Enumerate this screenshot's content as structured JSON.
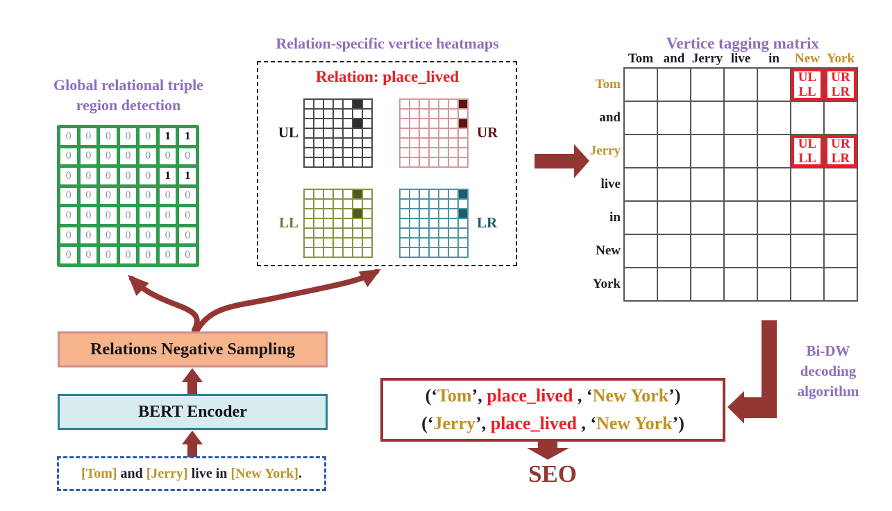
{
  "colors": {
    "purple": "#8f6fbd",
    "darkred": "#943634",
    "green": "#2f9b4e",
    "gold": "#bf9226",
    "red": "#ee1c25",
    "ink": "#1c1c2a",
    "zero": "#8d93a2",
    "gridline": "#575757",
    "bluedash": "#2b5cab",
    "bert_fill": "#d8ecf0",
    "bert_border": "#2b7f90",
    "sampling_fill": "#f6b48d",
    "sampling_border": "#cf8e8e"
  },
  "left_panel": {
    "title_lines": [
      "Global relational triple",
      "region detection"
    ],
    "matrix": [
      [
        "0",
        "0",
        "0",
        "0",
        "0",
        "1",
        "1"
      ],
      [
        "0",
        "0",
        "0",
        "0",
        "0",
        "0",
        "0"
      ],
      [
        "0",
        "0",
        "0",
        "0",
        "0",
        "1",
        "1"
      ],
      [
        "0",
        "0",
        "0",
        "0",
        "0",
        "0",
        "0"
      ],
      [
        "0",
        "0",
        "0",
        "0",
        "0",
        "0",
        "0"
      ],
      [
        "0",
        "0",
        "0",
        "0",
        "0",
        "0",
        "0"
      ],
      [
        "0",
        "0",
        "0",
        "0",
        "0",
        "0",
        "0"
      ]
    ]
  },
  "heatmaps": {
    "title": "Relation-specific vertice heatmaps",
    "relation_label": "Relation: place_lived",
    "grids": [
      {
        "label": "UL",
        "rows": 7,
        "cols": 7,
        "marked": [
          [
            0,
            5
          ],
          [
            2,
            5
          ]
        ],
        "border": "#4a4a4a",
        "fill": "#2e2e2e",
        "label_color": "#17171f"
      },
      {
        "label": "UR",
        "rows": 7,
        "cols": 7,
        "marked": [
          [
            0,
            6
          ],
          [
            2,
            6
          ]
        ],
        "border": "#d59898",
        "fill": "#5c1414",
        "label_color": "#5c1414"
      },
      {
        "label": "LL",
        "rows": 7,
        "cols": 7,
        "marked": [
          [
            0,
            5
          ],
          [
            2,
            5
          ]
        ],
        "border": "#8a9446",
        "fill": "#4d5a1e",
        "label_color": "#6e7836"
      },
      {
        "label": "LR",
        "rows": 7,
        "cols": 7,
        "marked": [
          [
            0,
            6
          ],
          [
            2,
            6
          ]
        ],
        "border": "#4f93a3",
        "fill": "#195e6d",
        "label_color": "#195e6d"
      }
    ]
  },
  "tagging_matrix": {
    "title": "Vertice tagging matrix",
    "col_headers": [
      {
        "text": "Tom",
        "color": "ink"
      },
      {
        "text": "and",
        "color": "ink"
      },
      {
        "text": "Jerry",
        "color": "ink"
      },
      {
        "text": "live",
        "color": "ink"
      },
      {
        "text": "in",
        "color": "ink"
      },
      {
        "text": "New",
        "color": "gold"
      },
      {
        "text": "York",
        "color": "gold"
      }
    ],
    "row_headers": [
      {
        "text": "Tom",
        "color": "gold"
      },
      {
        "text": "and",
        "color": "ink"
      },
      {
        "text": "Jerry",
        "color": "gold"
      },
      {
        "text": "live",
        "color": "ink"
      },
      {
        "text": "in",
        "color": "ink"
      },
      {
        "text": "New",
        "color": "ink"
      },
      {
        "text": "York",
        "color": "ink"
      }
    ],
    "tags": [
      {
        "row": 0,
        "col": 5,
        "lines": [
          "UL",
          "LL"
        ]
      },
      {
        "row": 0,
        "col": 6,
        "lines": [
          "UR",
          "LR"
        ]
      },
      {
        "row": 2,
        "col": 5,
        "lines": [
          "UL",
          "LL"
        ]
      },
      {
        "row": 2,
        "col": 6,
        "lines": [
          "UR",
          "LR"
        ]
      }
    ]
  },
  "pipeline": {
    "sampling_label": "Relations Negative Sampling",
    "encoder_label": "BERT Encoder",
    "input_segments": [
      {
        "t": "[Tom]",
        "c": "gold"
      },
      {
        "t": " and ",
        "c": "ink"
      },
      {
        "t": "[Jerry]",
        "c": "gold"
      },
      {
        "t": " live in ",
        "c": "ink"
      },
      {
        "t": "[New York]",
        "c": "gold"
      },
      {
        "t": ".",
        "c": "ink"
      }
    ]
  },
  "decoder": {
    "lines": [
      "Bi-DW",
      "decoding",
      "algorithm"
    ]
  },
  "output": {
    "triples": [
      [
        {
          "t": "(‘",
          "c": "ink"
        },
        {
          "t": "Tom",
          "c": "gold"
        },
        {
          "t": "’, ",
          "c": "ink"
        },
        {
          "t": "place_lived",
          "c": "red"
        },
        {
          "t": " , ‘",
          "c": "ink"
        },
        {
          "t": "New York",
          "c": "gold"
        },
        {
          "t": "’)",
          "c": "ink"
        }
      ],
      [
        {
          "t": "(‘",
          "c": "ink"
        },
        {
          "t": "Jerry",
          "c": "gold"
        },
        {
          "t": "’, ",
          "c": "ink"
        },
        {
          "t": "place_lived",
          "c": "red"
        },
        {
          "t": " , ‘",
          "c": "ink"
        },
        {
          "t": "New York",
          "c": "gold"
        },
        {
          "t": "’)",
          "c": "ink"
        }
      ]
    ],
    "seo_label": "SEO"
  }
}
